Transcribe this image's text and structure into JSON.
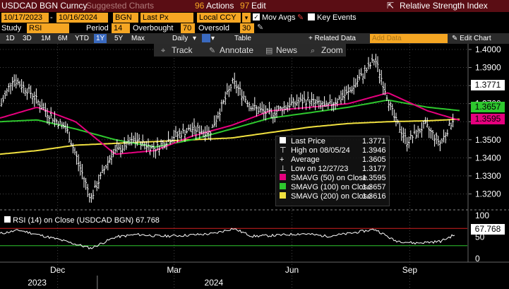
{
  "menubar": {
    "ticker": "USDCAD BGN Curncy",
    "suggested": "Suggested Charts",
    "actions_num": "96",
    "actions": "Actions",
    "edit_num": "97",
    "edit": "Edit",
    "title": "Relative Strength Index"
  },
  "controls": {
    "start_date": "10/17/2023",
    "end_date": "10/16/2024",
    "source": "BGN",
    "field": "Last Px",
    "currency": "Local CCY",
    "mov_avgs": "Mov Avgs",
    "key_events": "Key Events",
    "study_label": "Study",
    "study": "RSI",
    "period_label": "Period",
    "period": "14",
    "overbought_label": "Overbought",
    "overbought": "70",
    "oversold_label": "Oversold",
    "oversold": "30"
  },
  "toolbar": {
    "periods": [
      "1D",
      "3D",
      "1M",
      "6M",
      "YTD",
      "1Y",
      "5Y",
      "Max"
    ],
    "selected_period": "1Y",
    "frequency": "Daily",
    "table": "Table",
    "related": "+ Related Data",
    "add_data_placeholder": "Add Data",
    "edit_chart": "Edit Chart"
  },
  "chart_tools": [
    "Track",
    "Annotate",
    "News",
    "Zoom"
  ],
  "legend": {
    "last_price_label": "Last Price",
    "last_price": "1.3771",
    "high_label": "High on 08/05/24",
    "high": "1.3946",
    "average_label": "Average",
    "average": "1.3605",
    "low_label": "Low on 12/27/23",
    "low": "1.3177",
    "sma50_label": "SMAVG (50)  on Close",
    "sma50": "1.3595",
    "sma100_label": "SMAVG (100)  on Close",
    "sma100": "1.3657",
    "sma200_label": "SMAVG (200)  on Close",
    "sma200": "1.3616"
  },
  "price_tags": {
    "last": "1.3771",
    "sma100": "1.3657",
    "sma50": "1.3595"
  },
  "rsi": {
    "label": "RSI (14)  on Close (USDCAD BGN)",
    "value": "67.768",
    "tag": "67.768"
  },
  "colors": {
    "price": "#ffffff",
    "sma50": "#e6007e",
    "sma100": "#2ec82e",
    "sma200": "#f0e040",
    "overbought": "#d02020",
    "oversold": "#2ec82e",
    "ui_amber": "#f5a623",
    "menubar": "#5a0d14"
  },
  "chart_data": [
    {
      "type": "line",
      "title": "USDCAD BGN Curncy",
      "ylim": [
        1.31,
        1.4
      ],
      "yticks": [
        "1.4000",
        "1.3900",
        "1.3800",
        "1.3700",
        "1.3600",
        "1.3500",
        "1.3400",
        "1.3300",
        "1.3200"
      ],
      "xticks": [
        "Dec",
        "Mar",
        "Jun",
        "Sep"
      ],
      "xyears": [
        "2023",
        "2024"
      ],
      "series": [
        {
          "name": "Last Price",
          "x": [
            "2023-10-17",
            "2023-10-27",
            "2023-11-10",
            "2023-11-24",
            "2023-12-08",
            "2023-12-27",
            "2024-01-12",
            "2024-01-31",
            "2024-02-15",
            "2024-03-01",
            "2024-03-15",
            "2024-03-29",
            "2024-04-16",
            "2024-05-01",
            "2024-05-15",
            "2024-05-31",
            "2024-06-14",
            "2024-06-28",
            "2024-07-15",
            "2024-08-05",
            "2024-08-20",
            "2024-08-30",
            "2024-09-13",
            "2024-09-25",
            "2024-10-01",
            "2024-10-16"
          ],
          "values": [
            1.368,
            1.384,
            1.376,
            1.364,
            1.356,
            1.3177,
            1.342,
            1.35,
            1.345,
            1.352,
            1.356,
            1.354,
            1.382,
            1.368,
            1.364,
            1.37,
            1.372,
            1.368,
            1.376,
            1.3946,
            1.362,
            1.349,
            1.358,
            1.348,
            1.356,
            1.3771
          ]
        },
        {
          "name": "SMAVG (50)  on Close",
          "x": [
            "2023-10-17",
            "2023-11-15",
            "2023-12-15",
            "2024-01-15",
            "2024-02-15",
            "2024-03-15",
            "2024-04-15",
            "2024-05-15",
            "2024-06-15",
            "2024-07-15",
            "2024-08-15",
            "2024-09-15",
            "2024-10-16"
          ],
          "values": [
            1.362,
            1.368,
            1.36,
            1.342,
            1.344,
            1.352,
            1.358,
            1.366,
            1.368,
            1.37,
            1.376,
            1.366,
            1.3595
          ]
        },
        {
          "name": "SMAVG (100)  on Close",
          "x": [
            "2023-10-17",
            "2023-11-15",
            "2023-12-15",
            "2024-01-15",
            "2024-02-15",
            "2024-03-15",
            "2024-04-15",
            "2024-05-15",
            "2024-06-15",
            "2024-07-15",
            "2024-08-15",
            "2024-09-15",
            "2024-10-16"
          ],
          "values": [
            1.36,
            1.361,
            1.356,
            1.35,
            1.346,
            1.35,
            1.356,
            1.362,
            1.365,
            1.368,
            1.372,
            1.368,
            1.3657
          ]
        },
        {
          "name": "SMAVG (200)  on Close",
          "x": [
            "2023-10-17",
            "2023-11-15",
            "2023-12-15",
            "2024-01-15",
            "2024-02-15",
            "2024-03-15",
            "2024-04-15",
            "2024-05-15",
            "2024-06-15",
            "2024-07-15",
            "2024-08-15",
            "2024-09-15",
            "2024-10-16"
          ],
          "values": [
            1.342,
            1.344,
            1.347,
            1.348,
            1.349,
            1.35,
            1.351,
            1.354,
            1.357,
            1.359,
            1.36,
            1.3605,
            1.3616
          ]
        }
      ]
    },
    {
      "type": "line",
      "title": "RSI (14)  on Close (USDCAD BGN)",
      "ylim": [
        0,
        100
      ],
      "yticks": [
        "100",
        "50",
        "0"
      ],
      "overbought": 70,
      "oversold": 30,
      "series": [
        {
          "name": "RSI (14)",
          "x": [
            "2023-10-17",
            "2023-11-01",
            "2023-11-15",
            "2023-12-01",
            "2023-12-27",
            "2024-01-15",
            "2024-02-01",
            "2024-02-20",
            "2024-03-10",
            "2024-04-01",
            "2024-04-16",
            "2024-05-01",
            "2024-05-20",
            "2024-06-10",
            "2024-06-28",
            "2024-07-15",
            "2024-08-05",
            "2024-08-20",
            "2024-09-05",
            "2024-09-25",
            "2024-10-05",
            "2024-10-16"
          ],
          "values": [
            58,
            66,
            56,
            45,
            24,
            50,
            56,
            52,
            54,
            58,
            70,
            52,
            54,
            58,
            52,
            58,
            68,
            42,
            36,
            40,
            54,
            67.768
          ]
        }
      ]
    }
  ]
}
